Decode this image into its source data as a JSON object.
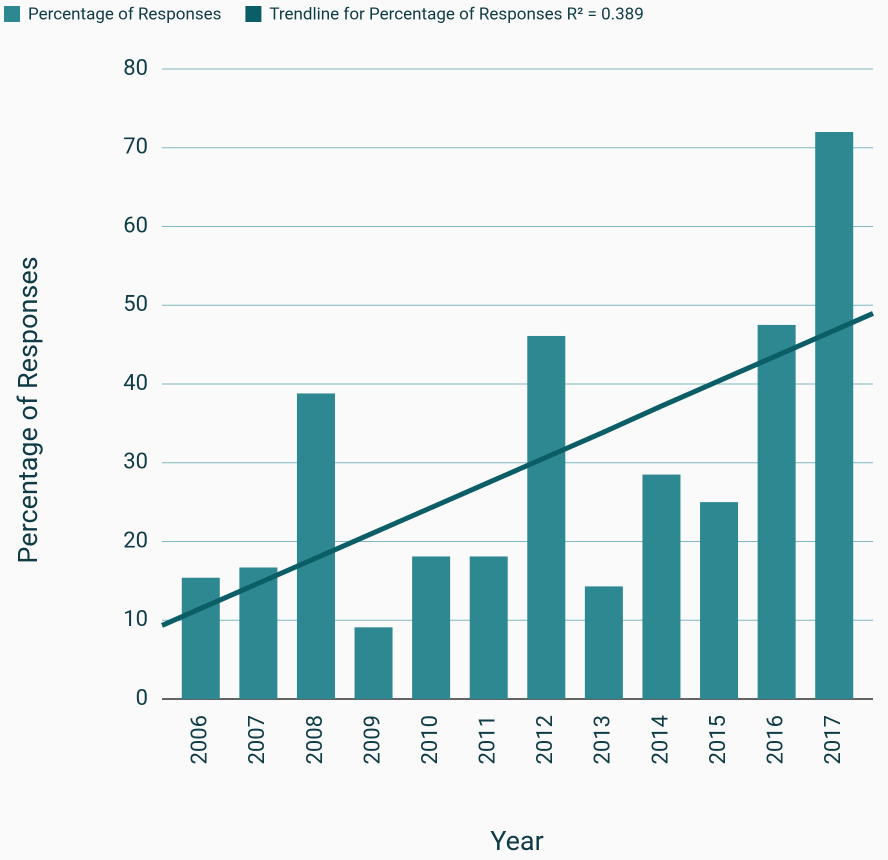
{
  "chart_data": {
    "type": "bar",
    "x_label": "Year",
    "y_label": "Percentage of Responses",
    "categories": [
      "2006",
      "2007",
      "2008",
      "2009",
      "2010",
      "2011",
      "2012",
      "2013",
      "2014",
      "2015",
      "2016",
      "2017"
    ],
    "series": [
      {
        "name": "Percentage of Responses",
        "color": "#2e8891",
        "values": [
          15.4,
          16.7,
          38.8,
          9.1,
          18.1,
          18.1,
          46.1,
          14.3,
          28.5,
          25,
          47.5,
          72
        ]
      },
      {
        "name": "Trendline for Percentage of Responses R² = 0.389",
        "type": "line",
        "color": "#0c5e66",
        "values": [
          11.5,
          14.7,
          17.9,
          21.1,
          24.3,
          27.5,
          30.7,
          33.9,
          37.2,
          40.4,
          43.6,
          46.8
        ]
      }
    ],
    "ylim": [
      0,
      80
    ],
    "yticks": [
      0,
      10,
      20,
      30,
      40,
      50,
      60,
      70,
      80
    ],
    "grid": true,
    "legend": "top"
  }
}
